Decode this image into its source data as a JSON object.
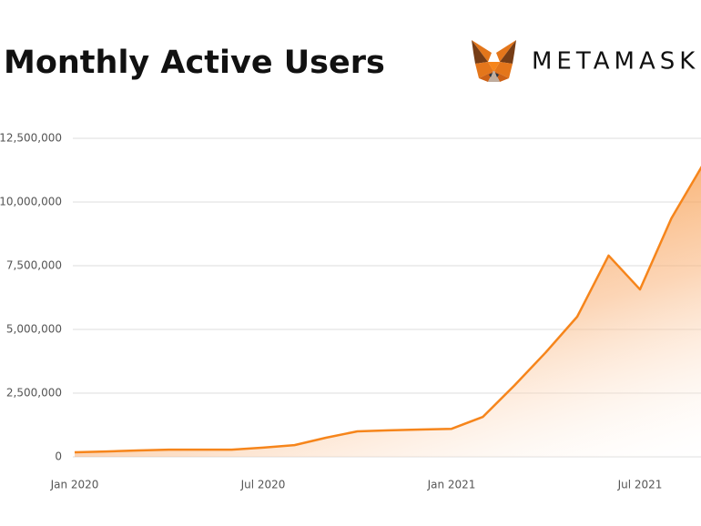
{
  "chart_data": {
    "type": "area",
    "title": "Monthly Active Users",
    "brand": "METAMASK",
    "categories": [
      "Jan 2020",
      null,
      null,
      null,
      null,
      null,
      "Jul 2020",
      null,
      null,
      null,
      null,
      null,
      "Jan 2021",
      null,
      null,
      null,
      null,
      null,
      "Jul 2021",
      null,
      null
    ],
    "series": [
      {
        "name": "Monthly Active Users",
        "color": "#f6851b",
        "values": [
          180000,
          210000,
          250000,
          280000,
          280000,
          280000,
          360000,
          460000,
          750000,
          1000000,
          1040000,
          1070000,
          1100000,
          1570000,
          2800000,
          4100000,
          5500000,
          7900000,
          6570000,
          9360000,
          11460000
        ]
      }
    ],
    "ylim": [
      0,
      12500000
    ],
    "yticks": [
      0,
      {
        "value": 2500000,
        "label": "2,500,000"
      },
      {
        "value": 5000000,
        "label": "5,000,000"
      },
      {
        "value": 7500000,
        "label": "7,500,000"
      },
      {
        "value": 10000000,
        "label": "10,000,000"
      },
      {
        "value": 12500000,
        "label": "12,500,000"
      }
    ],
    "grid": true
  }
}
